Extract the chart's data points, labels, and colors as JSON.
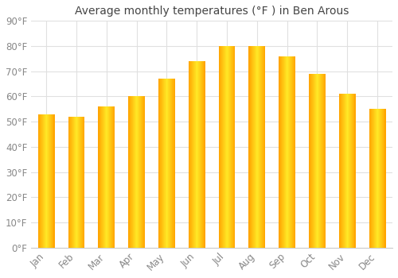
{
  "title": "Average monthly temperatures (°F ) in Ben Arous",
  "months": [
    "Jan",
    "Feb",
    "Mar",
    "Apr",
    "May",
    "Jun",
    "Jul",
    "Aug",
    "Sep",
    "Oct",
    "Nov",
    "Dec"
  ],
  "values": [
    53,
    52,
    56,
    60,
    67,
    74,
    80,
    80,
    76,
    69,
    61,
    55
  ],
  "bar_color_left": "#FFA500",
  "bar_color_mid": "#FFD040",
  "bar_color_right": "#FFA500",
  "background_color": "#FFFFFF",
  "grid_color": "#E0E0E0",
  "text_color": "#888888",
  "title_color": "#444444",
  "ylim": [
    0,
    90
  ],
  "yticks": [
    0,
    10,
    20,
    30,
    40,
    50,
    60,
    70,
    80,
    90
  ],
  "title_fontsize": 10,
  "tick_fontsize": 8.5,
  "bar_width": 0.55
}
